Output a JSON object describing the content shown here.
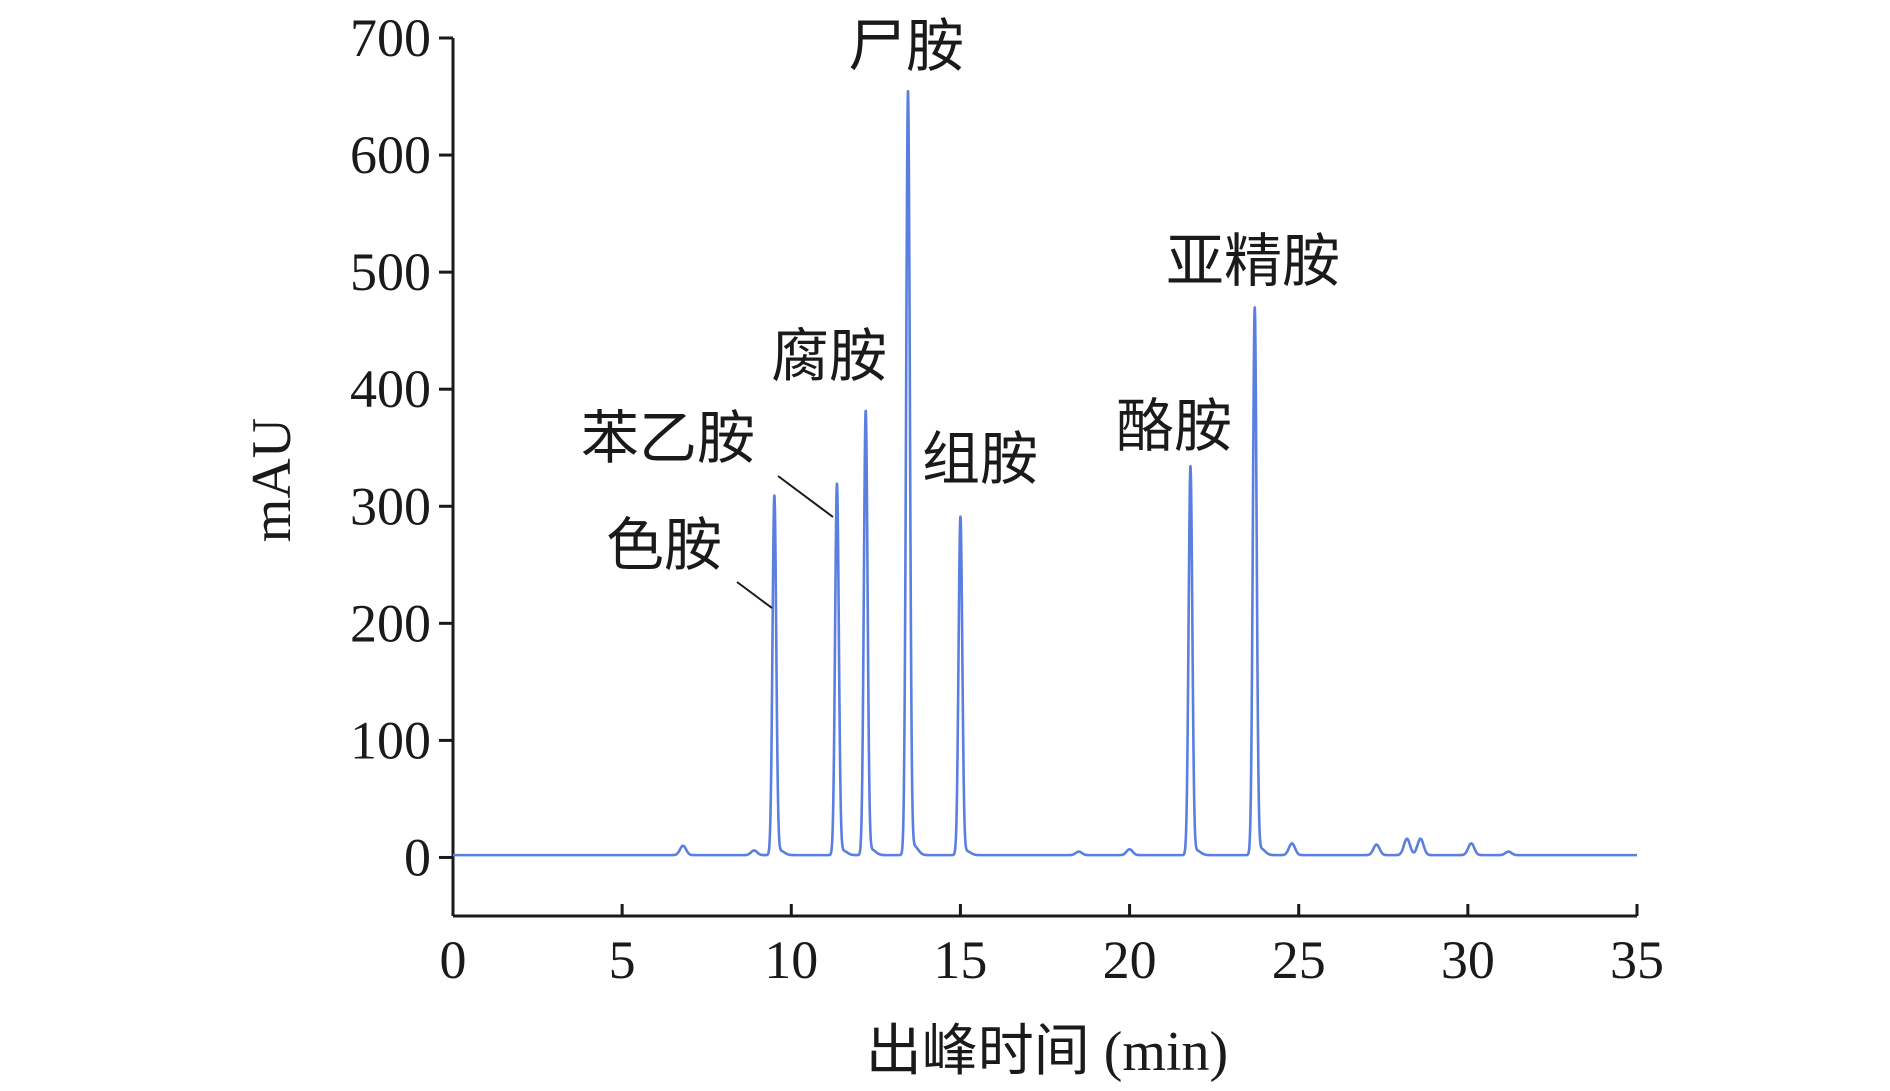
{
  "chart_data": {
    "type": "line",
    "xlabel": "出峰时间 (min)",
    "ylabel": "mAU",
    "xlim": [
      0,
      35
    ],
    "ylim": [
      -50,
      700
    ],
    "x_ticks": [
      0,
      5,
      10,
      15,
      20,
      25,
      30,
      35
    ],
    "x_tick_labels": [
      "0",
      "5",
      "10",
      "15",
      "20",
      "25",
      "30",
      "35"
    ],
    "y_ticks": [
      0,
      100,
      200,
      300,
      400,
      500,
      600,
      700
    ],
    "y_tick_labels": [
      "0",
      "100",
      "200",
      "300",
      "400",
      "500",
      "600",
      "700"
    ],
    "grid": false,
    "line_color": "#5b7fe0",
    "baseline": 2,
    "peaks": [
      {
        "name": "色胺",
        "x": 9.5,
        "y": 308
      },
      {
        "name": "苯乙胺",
        "x": 11.35,
        "y": 318
      },
      {
        "name": "腐胺",
        "x": 12.2,
        "y": 380
      },
      {
        "name": "尸胺",
        "x": 13.45,
        "y": 652
      },
      {
        "name": "组胺",
        "x": 15.0,
        "y": 290
      },
      {
        "name": "酪胺",
        "x": 21.8,
        "y": 333
      },
      {
        "name": "亚精胺",
        "x": 23.7,
        "y": 468
      }
    ],
    "minor_peaks": [
      {
        "x": 6.8,
        "y": 8
      },
      {
        "x": 8.9,
        "y": 4
      },
      {
        "x": 18.5,
        "y": 3
      },
      {
        "x": 20.0,
        "y": 5
      },
      {
        "x": 24.8,
        "y": 10
      },
      {
        "x": 27.3,
        "y": 9
      },
      {
        "x": 28.2,
        "y": 14
      },
      {
        "x": 28.6,
        "y": 14
      },
      {
        "x": 30.1,
        "y": 10
      },
      {
        "x": 31.2,
        "y": 3
      }
    ]
  }
}
